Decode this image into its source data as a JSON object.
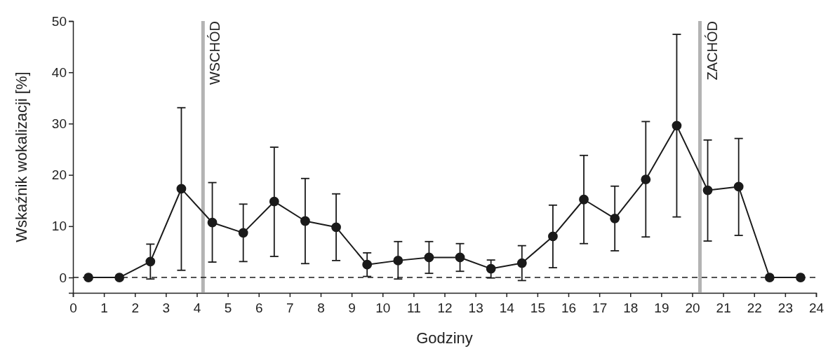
{
  "chart_data": {
    "type": "line",
    "xlabel": "Godziny",
    "ylabel": "Wskaźnik wokalizacji [%]",
    "x": [
      0.5,
      1.5,
      2.5,
      3.5,
      4.5,
      5.5,
      6.5,
      7.5,
      8.5,
      9.5,
      10.5,
      11.5,
      12.5,
      13.5,
      14.5,
      15.5,
      16.5,
      17.5,
      18.5,
      19.5,
      20.5,
      21.5,
      22.5,
      23.5
    ],
    "series": [
      {
        "color": "#1a1a1a",
        "values": [
          0,
          0,
          3.1,
          17.3,
          10.7,
          8.7,
          14.8,
          11.0,
          9.8,
          2.5,
          3.3,
          3.9,
          3.9,
          1.7,
          2.8,
          8.0,
          15.2,
          11.5,
          19.1,
          29.6,
          17.0,
          17.7,
          0,
          0
        ],
        "errors": [
          null,
          null,
          [
            -0.3,
            6.5
          ],
          [
            1.4,
            33.1
          ],
          [
            3.0,
            18.5
          ],
          [
            3.1,
            14.3
          ],
          [
            4.1,
            25.4
          ],
          [
            2.7,
            19.3
          ],
          [
            3.3,
            16.3
          ],
          [
            0.2,
            4.8
          ],
          [
            -0.3,
            7.0
          ],
          [
            0.8,
            7.0
          ],
          [
            1.2,
            6.6
          ],
          [
            -0.1,
            3.4
          ],
          [
            -0.6,
            6.2
          ],
          [
            1.9,
            14.1
          ],
          [
            6.6,
            23.8
          ],
          [
            5.2,
            17.8
          ],
          [
            7.9,
            30.4
          ],
          [
            11.8,
            47.4
          ],
          [
            7.1,
            26.8
          ],
          [
            8.2,
            27.1
          ],
          null,
          null
        ]
      }
    ],
    "marker": "circle",
    "line_style": "solid",
    "xlim": [
      0,
      24
    ],
    "xticks": [
      0,
      1,
      2,
      3,
      4,
      5,
      6,
      7,
      8,
      9,
      10,
      11,
      12,
      13,
      14,
      15,
      16,
      17,
      18,
      19,
      20,
      21,
      22,
      23,
      24
    ],
    "ylim": [
      -3,
      50
    ],
    "yticks": [
      0,
      10,
      20,
      30,
      40,
      50
    ],
    "ref_lines": [
      {
        "axis": "x",
        "value": 4.2,
        "label": "WSCHÓD",
        "color": "#b3b3b3",
        "line_style": "solid"
      },
      {
        "axis": "x",
        "value": 20.25,
        "label": "ZACHÓD",
        "color": "#b3b3b3",
        "line_style": "solid"
      },
      {
        "axis": "y",
        "value": 0,
        "color": "#1a1a1a",
        "line_style": "dashed"
      }
    ],
    "grid": false
  }
}
